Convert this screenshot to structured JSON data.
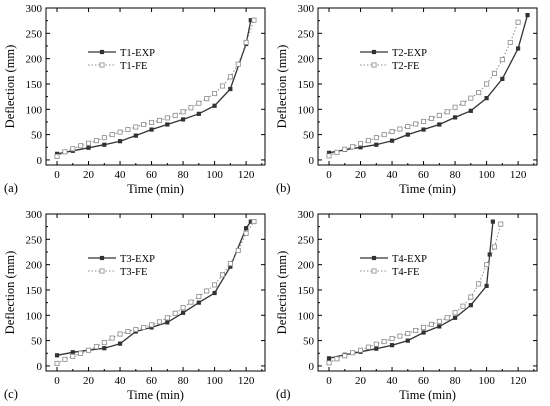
{
  "chart_data": [
    {
      "type": "line",
      "panel_label": "(a)",
      "xlabel": "Time (min)",
      "ylabel": "Deflection (mm)",
      "xlim": [
        -7,
        132
      ],
      "ylim": [
        -10,
        300
      ],
      "xticks": [
        0,
        20,
        40,
        60,
        80,
        100,
        120
      ],
      "yticks": [
        0,
        50,
        100,
        150,
        200,
        250,
        300
      ],
      "legend_position": "upper-left",
      "series": [
        {
          "name": "T1-EXP",
          "style": "solid-filled-square",
          "color": "#333333",
          "x": [
            0,
            10,
            20,
            30,
            40,
            50,
            60,
            70,
            80,
            90,
            100,
            110,
            120,
            123
          ],
          "y": [
            12,
            18,
            24,
            30,
            37,
            48,
            60,
            70,
            80,
            91,
            107,
            140,
            229,
            276
          ]
        },
        {
          "name": "T1-FE",
          "style": "dotted-open-square",
          "color": "#888888",
          "x": [
            0,
            5,
            10,
            15,
            20,
            25,
            30,
            35,
            40,
            45,
            50,
            55,
            60,
            65,
            70,
            75,
            80,
            85,
            90,
            95,
            100,
            105,
            110,
            115,
            120,
            125
          ],
          "y": [
            7,
            16,
            22,
            28,
            33,
            38,
            44,
            50,
            55,
            60,
            65,
            70,
            74,
            78,
            83,
            88,
            95,
            103,
            112,
            121,
            131,
            146,
            164,
            189,
            232,
            276
          ]
        }
      ]
    },
    {
      "type": "line",
      "panel_label": "(b)",
      "xlabel": "Time (min)",
      "ylabel": "Deflection (mm)",
      "xlim": [
        -7,
        132
      ],
      "ylim": [
        -10,
        300
      ],
      "xticks": [
        0,
        20,
        40,
        60,
        80,
        100,
        120
      ],
      "yticks": [
        0,
        50,
        100,
        150,
        200,
        250,
        300
      ],
      "legend_position": "upper-left",
      "series": [
        {
          "name": "T2-EXP",
          "style": "solid-filled-square",
          "color": "#333333",
          "x": [
            0,
            10,
            20,
            30,
            40,
            50,
            60,
            70,
            80,
            90,
            100,
            110,
            120,
            126
          ],
          "y": [
            14,
            20,
            25,
            30,
            38,
            50,
            60,
            70,
            84,
            97,
            122,
            160,
            220,
            286
          ]
        },
        {
          "name": "T2-FE",
          "style": "dotted-open-square",
          "color": "#888888",
          "x": [
            0,
            5,
            10,
            15,
            20,
            25,
            30,
            35,
            40,
            45,
            50,
            55,
            60,
            65,
            70,
            75,
            80,
            85,
            90,
            95,
            100,
            105,
            110,
            115,
            120
          ],
          "y": [
            8,
            15,
            21,
            26,
            32,
            38,
            44,
            50,
            56,
            61,
            66,
            71,
            76,
            82,
            88,
            95,
            104,
            112,
            122,
            133,
            150,
            171,
            198,
            232,
            272
          ]
        }
      ]
    },
    {
      "type": "line",
      "panel_label": "(c)",
      "xlabel": "Time (min)",
      "ylabel": "Deflection (mm)",
      "xlim": [
        -7,
        132
      ],
      "ylim": [
        -10,
        300
      ],
      "xticks": [
        0,
        20,
        40,
        60,
        80,
        100,
        120
      ],
      "yticks": [
        0,
        50,
        100,
        150,
        200,
        250,
        300
      ],
      "legend_position": "upper-left",
      "series": [
        {
          "name": "T3-EXP",
          "style": "solid-filled-square",
          "color": "#333333",
          "x": [
            0,
            10,
            20,
            30,
            40,
            50,
            60,
            70,
            80,
            90,
            100,
            110,
            120,
            123
          ],
          "y": [
            21,
            27,
            31,
            35,
            44,
            68,
            76,
            86,
            105,
            125,
            144,
            196,
            272,
            285
          ]
        },
        {
          "name": "T3-FE",
          "style": "dotted-open-square",
          "color": "#888888",
          "x": [
            0,
            5,
            10,
            15,
            20,
            25,
            30,
            35,
            40,
            45,
            50,
            55,
            60,
            65,
            70,
            75,
            80,
            85,
            90,
            95,
            100,
            105,
            110,
            115,
            120,
            125
          ],
          "y": [
            5,
            13,
            19,
            25,
            31,
            38,
            46,
            55,
            63,
            68,
            72,
            76,
            81,
            87,
            95,
            104,
            115,
            126,
            137,
            148,
            160,
            180,
            202,
            228,
            262,
            285
          ]
        }
      ]
    },
    {
      "type": "line",
      "panel_label": "(d)",
      "xlabel": "Time (min)",
      "ylabel": "Deflection (mm)",
      "xlim": [
        -7,
        132
      ],
      "ylim": [
        -10,
        300
      ],
      "xticks": [
        0,
        20,
        40,
        60,
        80,
        100,
        120
      ],
      "yticks": [
        0,
        50,
        100,
        150,
        200,
        250,
        300
      ],
      "legend_position": "upper-left",
      "series": [
        {
          "name": "T4-EXP",
          "style": "solid-filled-square",
          "color": "#333333",
          "x": [
            0,
            10,
            20,
            30,
            40,
            50,
            60,
            70,
            80,
            90,
            100,
            102,
            104
          ],
          "y": [
            15,
            22,
            28,
            34,
            41,
            50,
            66,
            78,
            95,
            120,
            158,
            220,
            285
          ]
        },
        {
          "name": "T4-FE",
          "style": "dotted-open-square",
          "color": "#888888",
          "x": [
            0,
            5,
            10,
            15,
            20,
            25,
            30,
            35,
            40,
            45,
            50,
            55,
            60,
            65,
            70,
            75,
            80,
            85,
            90,
            95,
            100,
            105,
            109
          ],
          "y": [
            6,
            14,
            20,
            26,
            31,
            37,
            43,
            48,
            54,
            59,
            64,
            70,
            76,
            82,
            88,
            95,
            105,
            118,
            136,
            162,
            200,
            235,
            280
          ]
        }
      ]
    }
  ]
}
